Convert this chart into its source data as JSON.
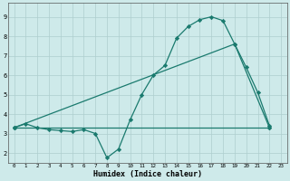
{
  "xlabel": "Humidex (Indice chaleur)",
  "bg_color": "#ceeaea",
  "line_color": "#1a7a6e",
  "grid_color": "#aecece",
  "xlim": [
    -0.5,
    23.5
  ],
  "ylim": [
    1.5,
    9.7
  ],
  "xticks": [
    0,
    1,
    2,
    3,
    4,
    5,
    6,
    7,
    8,
    9,
    10,
    11,
    12,
    13,
    14,
    15,
    16,
    17,
    18,
    19,
    20,
    21,
    22,
    23
  ],
  "yticks": [
    2,
    3,
    4,
    5,
    6,
    7,
    8,
    9
  ],
  "line1_x": [
    0,
    1,
    2,
    3,
    4,
    5,
    6,
    7,
    8,
    9,
    10,
    11,
    12,
    13,
    14,
    15,
    16,
    17,
    18,
    19,
    20,
    21,
    22
  ],
  "line1_y": [
    3.3,
    3.5,
    3.3,
    3.2,
    3.15,
    3.1,
    3.2,
    3.0,
    1.75,
    2.2,
    3.7,
    5.0,
    6.0,
    6.5,
    7.9,
    8.5,
    8.85,
    9.0,
    8.8,
    7.6,
    6.4,
    5.1,
    3.4
  ],
  "line2_x": [
    0,
    22
  ],
  "line2_y": [
    3.3,
    3.3
  ],
  "line3_x": [
    0,
    19,
    22
  ],
  "line3_y": [
    3.3,
    7.6,
    3.3
  ]
}
